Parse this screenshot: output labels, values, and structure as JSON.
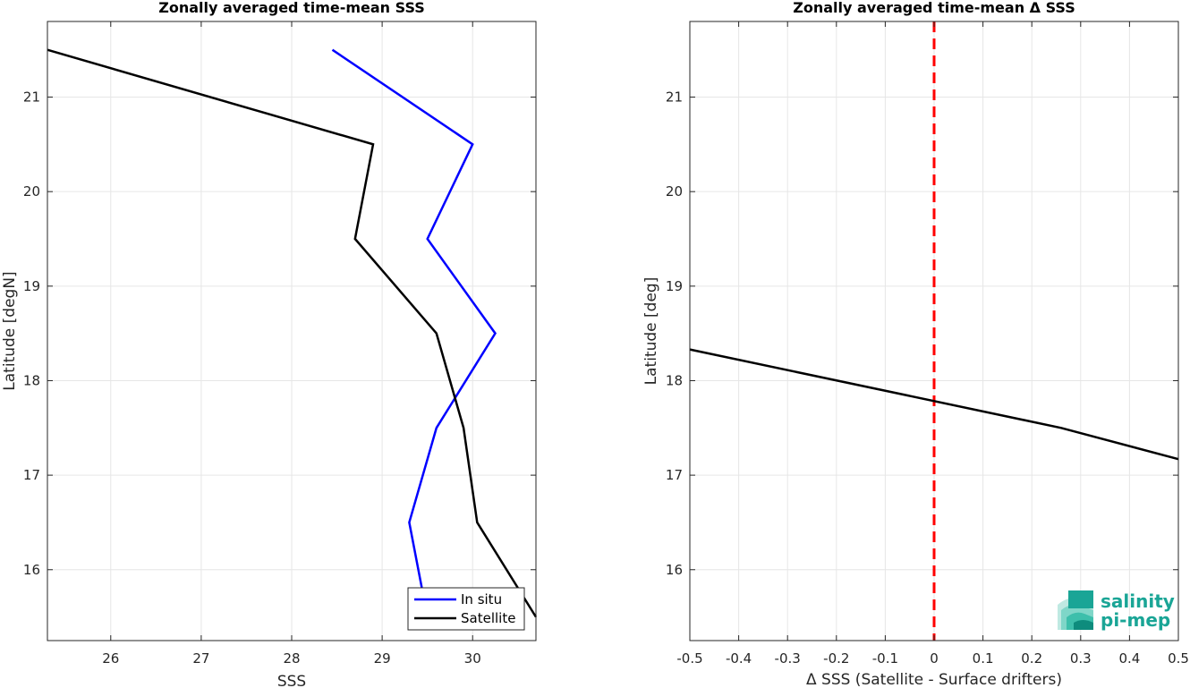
{
  "chart_data": [
    {
      "type": "line",
      "title": "Zonally averaged time-mean SSS",
      "xlabel": "SSS",
      "ylabel": "Latitude [degN]",
      "xlim": [
        25.3,
        30.7
      ],
      "ylim": [
        15.25,
        21.8
      ],
      "xticks": [
        "26",
        "27",
        "28",
        "29",
        "30"
      ],
      "yticks": [
        "16",
        "17",
        "18",
        "19",
        "20",
        "21"
      ],
      "grid": true,
      "legend_position": "bottom-right",
      "series": [
        {
          "name": "In situ",
          "color": "#0000ff",
          "points": [
            [
              28.45,
              21.5
            ],
            [
              30.0,
              20.5
            ],
            [
              29.5,
              19.5
            ],
            [
              30.25,
              18.5
            ],
            [
              29.6,
              17.5
            ],
            [
              29.3,
              16.5
            ],
            [
              29.5,
              15.5
            ]
          ]
        },
        {
          "name": "Satellite",
          "color": "#000000",
          "points": [
            [
              25.3,
              21.5
            ],
            [
              28.9,
              20.5
            ],
            [
              28.7,
              19.5
            ],
            [
              29.6,
              18.5
            ],
            [
              29.9,
              17.5
            ],
            [
              30.05,
              16.5
            ],
            [
              30.7,
              15.5
            ]
          ]
        }
      ]
    },
    {
      "type": "line",
      "title": "Zonally averaged time-mean Δ SSS",
      "xlabel": "Δ SSS (Satellite - Surface drifters)",
      "ylabel": "Latitude [deg]",
      "xlim": [
        -0.5,
        0.5
      ],
      "ylim": [
        15.25,
        21.8
      ],
      "xticks": [
        "-0.5",
        "-0.4",
        "-0.3",
        "-0.2",
        "-0.1",
        "0",
        "0.1",
        "0.2",
        "0.3",
        "0.4",
        "0.5"
      ],
      "yticks": [
        "16",
        "17",
        "18",
        "19",
        "20",
        "21"
      ],
      "grid": true,
      "series": [
        {
          "color": "#000000",
          "points": [
            [
              -0.5,
              18.33
            ],
            [
              0.26,
              17.5
            ],
            [
              0.5,
              17.17
            ]
          ]
        }
      ],
      "reference_line": {
        "x": 0,
        "color": "#ff0000",
        "style": "dashed"
      }
    }
  ],
  "logo": {
    "line1": "salinity",
    "line2": "pi-mep",
    "color": "#1aa596"
  }
}
